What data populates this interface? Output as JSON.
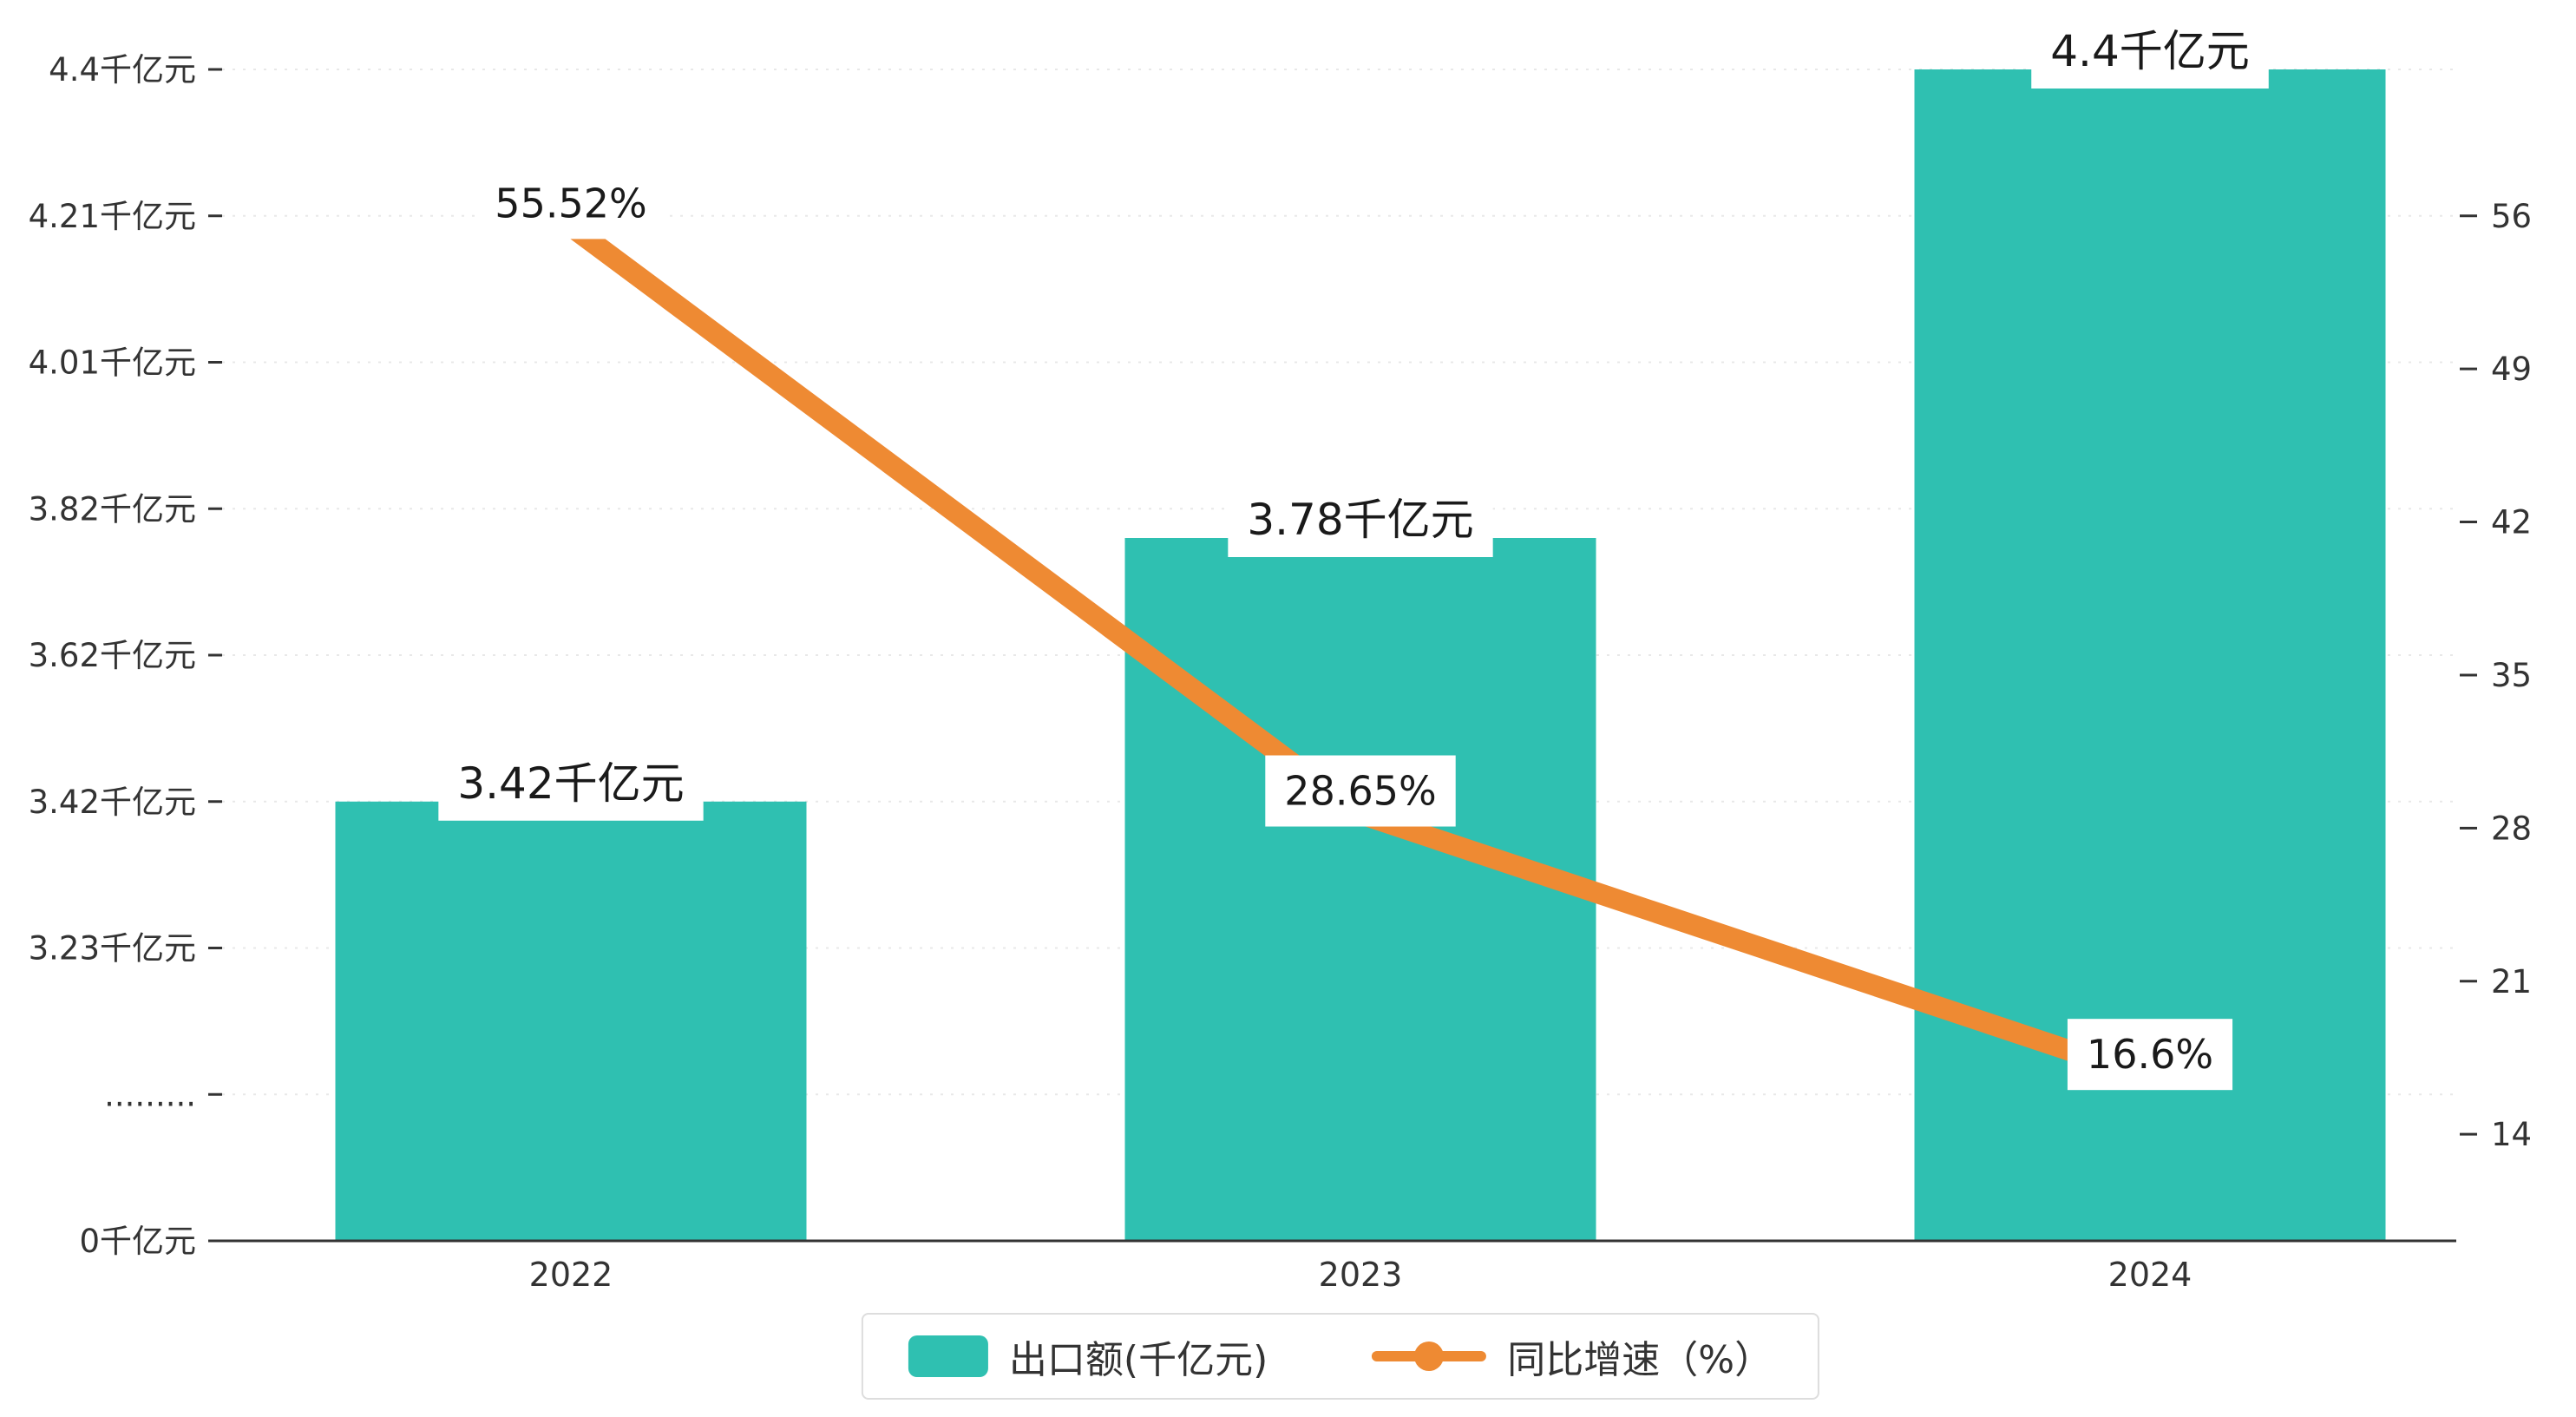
{
  "chart_data": {
    "type": "bar+line",
    "title": "",
    "categories": [
      "2022",
      "2023",
      "2024"
    ],
    "series": [
      {
        "name": "出口额(千亿元)",
        "type": "bar",
        "axis": "left",
        "color": "#2fc0b1",
        "values": [
          3.42,
          3.78,
          4.4
        ],
        "value_labels": [
          "3.42千亿元",
          "3.78千亿元",
          "4.4千亿元"
        ]
      },
      {
        "name": "同比增速（%）",
        "type": "line",
        "axis": "right",
        "color": "#ee8a33",
        "values": [
          55.52,
          28.65,
          16.6
        ],
        "value_labels": [
          "55.52%",
          "28.65%",
          "16.6%"
        ]
      }
    ],
    "left_axis": {
      "broken_axis": true,
      "tick_labels": [
        "0千亿元",
        ".........",
        "3.23千亿元",
        "3.42千亿元",
        "3.62千亿元",
        "3.82千亿元",
        "4.01千亿元",
        "4.21千亿元",
        "4.4千亿元"
      ],
      "tick_values": [
        0,
        null,
        3.23,
        3.42,
        3.62,
        3.82,
        4.01,
        4.21,
        4.4
      ]
    },
    "right_axis": {
      "tick_labels": [
        "56",
        "49",
        "42",
        "35",
        "28",
        "21",
        "14"
      ],
      "min": 14,
      "max": 56,
      "step": 7
    },
    "legend": {
      "position": "bottom",
      "items": [
        {
          "label": "出口额(千亿元)",
          "marker": "square",
          "color": "#2fc0b1"
        },
        {
          "label": "同比增速（%）",
          "marker": "line-dot",
          "color": "#ee8a33"
        }
      ]
    },
    "grid": true,
    "colors": {
      "bar": "#2fc0b1",
      "line": "#ee8a33",
      "axis": "#333333",
      "gridline": "#e8e8e8",
      "tick_text": "#333333",
      "label_text": "#1a1a1a",
      "background": "#ffffff"
    }
  }
}
